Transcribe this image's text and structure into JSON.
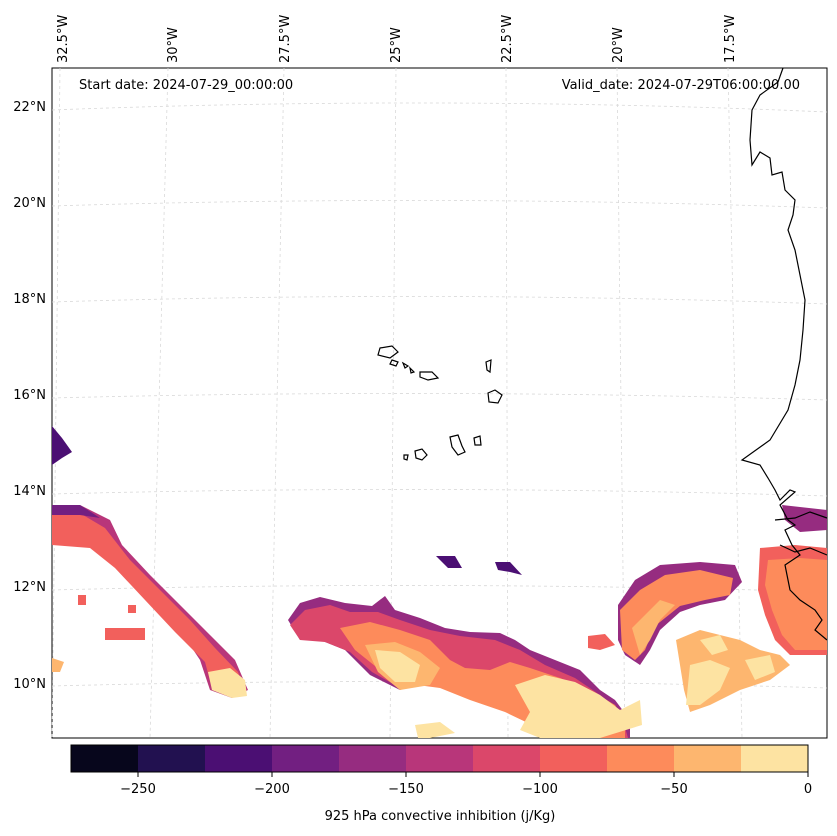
{
  "annotations": {
    "start_date": "Start date: 2024-07-29_00:00:00",
    "valid_date": "Valid_date: 2024-07-29T06:00:00.00"
  },
  "lon_labels": [
    "32.5°W",
    "30°W",
    "27.5°W",
    "25°W",
    "22.5°W",
    "20°W",
    "17.5°W"
  ],
  "lat_labels": [
    "22°N",
    "20°N",
    "18°N",
    "16°N",
    "14°N",
    "12°N",
    "10°N"
  ],
  "colorbar": {
    "title": "925 hPa convective inhibition (j/Kg)",
    "ticks": [
      "−250",
      "−200",
      "−150",
      "−100",
      "−50",
      "0"
    ],
    "colors": [
      "#07061c",
      "#221150",
      "#4b0f73",
      "#721f81",
      "#962c80",
      "#b8367a",
      "#db476a",
      "#f2605c",
      "#fd8b5b",
      "#fdb66f",
      "#fde3a2"
    ]
  },
  "colors": {
    "grid": "#cfcfcf",
    "coast": "#000000"
  }
}
